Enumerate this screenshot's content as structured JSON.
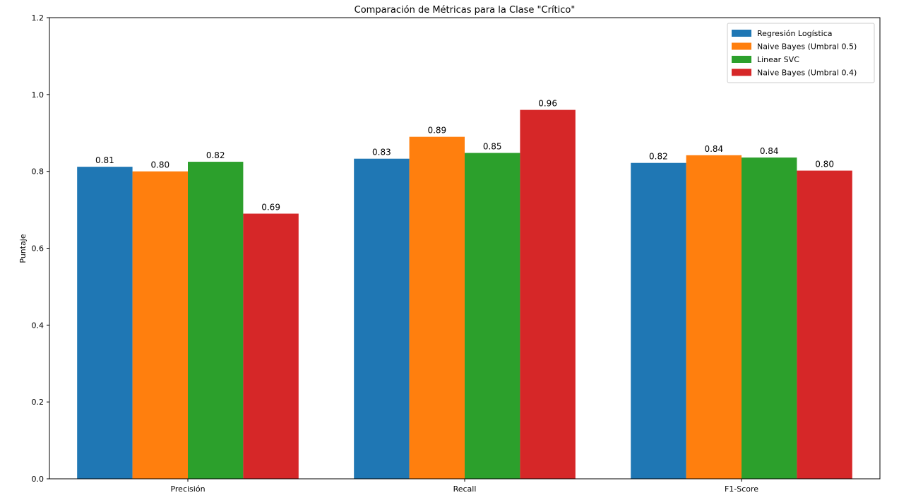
{
  "chart_data": {
    "type": "bar",
    "title": "Comparación de Métricas para la Clase \"Crítico\"",
    "xlabel": "",
    "ylabel": "Puntaje",
    "ylim": [
      0,
      1.2
    ],
    "yticks": [
      0.0,
      0.2,
      0.4,
      0.6,
      0.8,
      1.0,
      1.2
    ],
    "ytick_labels": [
      "0.0",
      "0.2",
      "0.4",
      "0.6",
      "0.8",
      "1.0",
      "1.2"
    ],
    "categories": [
      "Precisión",
      "Recall",
      "F1-Score"
    ],
    "legend_position": "top-right",
    "grid": false,
    "series": [
      {
        "name": "Regresión Logística",
        "color": "#1f77b4",
        "values": [
          0.812,
          0.833,
          0.822
        ],
        "labels": [
          "0.81",
          "0.83",
          "0.82"
        ]
      },
      {
        "name": "Naive Bayes (Umbral 0.5)",
        "color": "#ff7f0e",
        "values": [
          0.8,
          0.89,
          0.842
        ],
        "labels": [
          "0.80",
          "0.89",
          "0.84"
        ]
      },
      {
        "name": "Linear SVC",
        "color": "#2ca02c",
        "values": [
          0.825,
          0.848,
          0.836
        ],
        "labels": [
          "0.82",
          "0.85",
          "0.84"
        ]
      },
      {
        "name": "Naive Bayes (Umbral 0.4)",
        "color": "#d62728",
        "values": [
          0.69,
          0.96,
          0.802
        ],
        "labels": [
          "0.69",
          "0.96",
          "0.80"
        ]
      }
    ]
  }
}
